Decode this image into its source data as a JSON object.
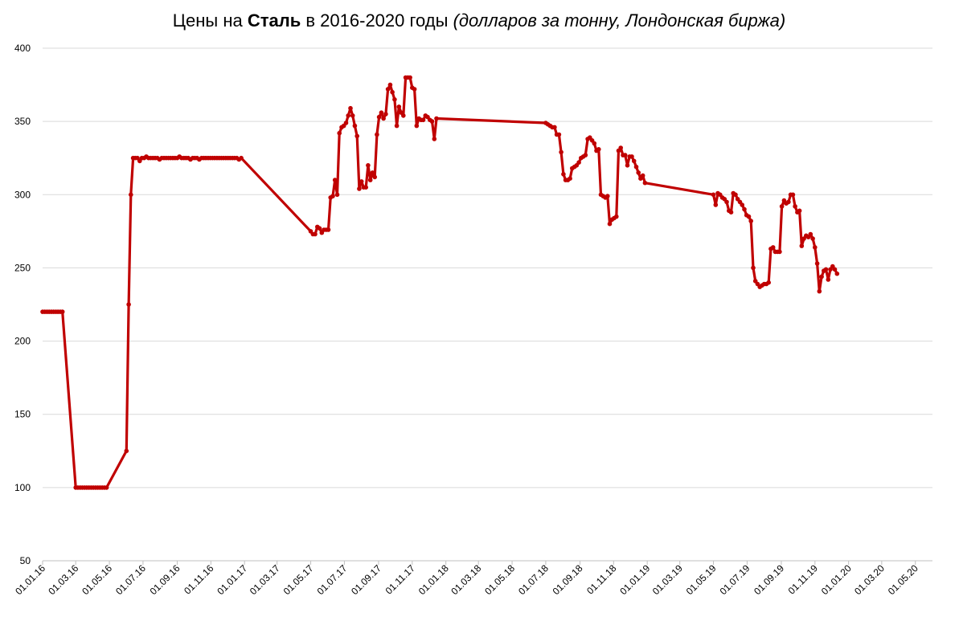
{
  "chart_data": {
    "type": "line",
    "title_parts": {
      "prefix": "Цены на ",
      "bold": "Сталь",
      "middle": " в 2016-2020 годы ",
      "italic": "(долларов за тонну, Лондонская биржа)"
    },
    "xlabel": "",
    "ylabel": "",
    "ylim": [
      50,
      400
    ],
    "yticks": [
      50,
      100,
      150,
      200,
      250,
      300,
      350,
      400
    ],
    "grid": true,
    "legend": "none",
    "colors": {
      "line": "#c00000",
      "grid": "#d9d9d9",
      "axis": "#bfbfbf"
    },
    "x_start": "2016-01-01",
    "x_end": "2020-06-01",
    "x_tick_labels": [
      {
        "date": "2016-01-01",
        "label": "01.01.16"
      },
      {
        "date": "2016-03-01",
        "label": "01.03.16"
      },
      {
        "date": "2016-05-01",
        "label": "01.05.16"
      },
      {
        "date": "2016-07-01",
        "label": "01.07.16"
      },
      {
        "date": "2016-09-01",
        "label": "01.09.16"
      },
      {
        "date": "2016-11-01",
        "label": "01.11.16"
      },
      {
        "date": "2017-01-01",
        "label": "01.01.17"
      },
      {
        "date": "2017-03-01",
        "label": "01.03.17"
      },
      {
        "date": "2017-05-01",
        "label": "01.05.17"
      },
      {
        "date": "2017-07-01",
        "label": "01.07.17"
      },
      {
        "date": "2017-09-01",
        "label": "01.09.17"
      },
      {
        "date": "2017-11-01",
        "label": "01.11.17"
      },
      {
        "date": "2018-01-01",
        "label": "01.01.18"
      },
      {
        "date": "2018-03-01",
        "label": "01.03.18"
      },
      {
        "date": "2018-05-01",
        "label": "01.05.18"
      },
      {
        "date": "2018-07-01",
        "label": "01.07.18"
      },
      {
        "date": "2018-09-01",
        "label": "01.09.18"
      },
      {
        "date": "2018-11-01",
        "label": "01.11.18"
      },
      {
        "date": "2019-01-01",
        "label": "01.01.19"
      },
      {
        "date": "2019-03-01",
        "label": "01.03.19"
      },
      {
        "date": "2019-05-01",
        "label": "01.05.19"
      },
      {
        "date": "2019-07-01",
        "label": "01.07.19"
      },
      {
        "date": "2019-09-01",
        "label": "01.09.19"
      },
      {
        "date": "2019-11-01",
        "label": "01.11.19"
      },
      {
        "date": "2020-01-01",
        "label": "01.01.20"
      },
      {
        "date": "2020-03-01",
        "label": "01.03.20"
      },
      {
        "date": "2020-05-01",
        "label": "01.05.20"
      }
    ],
    "series": [
      {
        "points": [
          [
            "2016-01-01",
            220
          ],
          [
            "2016-01-05",
            220
          ],
          [
            "2016-01-09",
            220
          ],
          [
            "2016-01-13",
            220
          ],
          [
            "2016-01-17",
            220
          ],
          [
            "2016-01-21",
            220
          ],
          [
            "2016-01-25",
            220
          ],
          [
            "2016-01-29",
            220
          ],
          [
            "2016-02-02",
            220
          ],
          [
            "2016-02-06",
            220
          ],
          [
            "2016-03-01",
            100
          ],
          [
            "2016-03-05",
            100
          ],
          [
            "2016-03-09",
            100
          ],
          [
            "2016-03-13",
            100
          ],
          [
            "2016-03-17",
            100
          ],
          [
            "2016-03-21",
            100
          ],
          [
            "2016-03-25",
            100
          ],
          [
            "2016-03-29",
            100
          ],
          [
            "2016-04-02",
            100
          ],
          [
            "2016-04-06",
            100
          ],
          [
            "2016-04-10",
            100
          ],
          [
            "2016-04-14",
            100
          ],
          [
            "2016-04-18",
            100
          ],
          [
            "2016-04-22",
            100
          ],
          [
            "2016-04-26",
            100
          ],
          [
            "2016-06-01",
            125
          ],
          [
            "2016-06-05",
            225
          ],
          [
            "2016-06-09",
            300
          ],
          [
            "2016-06-13",
            325
          ],
          [
            "2016-06-17",
            325
          ],
          [
            "2016-06-21",
            325
          ],
          [
            "2016-06-25",
            323
          ],
          [
            "2016-06-29",
            325
          ],
          [
            "2016-07-03",
            325
          ],
          [
            "2016-07-07",
            326
          ],
          [
            "2016-07-11",
            325
          ],
          [
            "2016-07-15",
            325
          ],
          [
            "2016-07-19",
            325
          ],
          [
            "2016-07-23",
            325
          ],
          [
            "2016-07-27",
            325
          ],
          [
            "2016-07-31",
            324
          ],
          [
            "2016-08-04",
            325
          ],
          [
            "2016-08-08",
            325
          ],
          [
            "2016-08-12",
            325
          ],
          [
            "2016-08-16",
            325
          ],
          [
            "2016-08-20",
            325
          ],
          [
            "2016-08-24",
            325
          ],
          [
            "2016-08-28",
            325
          ],
          [
            "2016-09-01",
            325
          ],
          [
            "2016-09-05",
            326
          ],
          [
            "2016-09-09",
            325
          ],
          [
            "2016-09-13",
            325
          ],
          [
            "2016-09-17",
            325
          ],
          [
            "2016-09-21",
            325
          ],
          [
            "2016-09-25",
            324
          ],
          [
            "2016-09-29",
            325
          ],
          [
            "2016-10-03",
            325
          ],
          [
            "2016-10-07",
            325
          ],
          [
            "2016-10-11",
            324
          ],
          [
            "2016-10-15",
            325
          ],
          [
            "2016-10-19",
            325
          ],
          [
            "2016-10-23",
            325
          ],
          [
            "2016-10-27",
            325
          ],
          [
            "2016-10-31",
            325
          ],
          [
            "2016-11-04",
            325
          ],
          [
            "2016-11-08",
            325
          ],
          [
            "2016-11-12",
            325
          ],
          [
            "2016-11-16",
            325
          ],
          [
            "2016-11-20",
            325
          ],
          [
            "2016-11-24",
            325
          ],
          [
            "2016-11-28",
            325
          ],
          [
            "2016-12-02",
            325
          ],
          [
            "2016-12-06",
            325
          ],
          [
            "2016-12-10",
            325
          ],
          [
            "2016-12-14",
            325
          ],
          [
            "2016-12-18",
            325
          ],
          [
            "2016-12-22",
            324
          ],
          [
            "2016-12-26",
            325
          ],
          [
            "2017-05-01",
            275
          ],
          [
            "2017-05-05",
            273
          ],
          [
            "2017-05-09",
            273
          ],
          [
            "2017-05-13",
            278
          ],
          [
            "2017-05-17",
            277
          ],
          [
            "2017-05-21",
            274
          ],
          [
            "2017-05-25",
            276
          ],
          [
            "2017-05-29",
            276
          ],
          [
            "2017-06-02",
            276
          ],
          [
            "2017-06-06",
            298
          ],
          [
            "2017-06-10",
            299
          ],
          [
            "2017-06-14",
            310
          ],
          [
            "2017-06-18",
            300
          ],
          [
            "2017-06-22",
            342
          ],
          [
            "2017-06-26",
            346
          ],
          [
            "2017-06-30",
            347
          ],
          [
            "2017-07-04",
            349
          ],
          [
            "2017-07-08",
            354
          ],
          [
            "2017-07-12",
            359
          ],
          [
            "2017-07-16",
            354
          ],
          [
            "2017-07-20",
            347
          ],
          [
            "2017-07-24",
            340
          ],
          [
            "2017-07-28",
            304
          ],
          [
            "2017-08-01",
            309
          ],
          [
            "2017-08-05",
            305
          ],
          [
            "2017-08-09",
            305
          ],
          [
            "2017-08-13",
            320
          ],
          [
            "2017-08-17",
            310
          ],
          [
            "2017-08-21",
            315
          ],
          [
            "2017-08-25",
            312
          ],
          [
            "2017-08-29",
            341
          ],
          [
            "2017-09-02",
            353
          ],
          [
            "2017-09-06",
            356
          ],
          [
            "2017-09-10",
            352
          ],
          [
            "2017-09-14",
            355
          ],
          [
            "2017-09-18",
            372
          ],
          [
            "2017-09-22",
            375
          ],
          [
            "2017-09-26",
            370
          ],
          [
            "2017-09-30",
            365
          ],
          [
            "2017-10-04",
            347
          ],
          [
            "2017-10-08",
            360
          ],
          [
            "2017-10-12",
            356
          ],
          [
            "2017-10-16",
            354
          ],
          [
            "2017-10-20",
            380
          ],
          [
            "2017-10-24",
            380
          ],
          [
            "2017-10-28",
            380
          ],
          [
            "2017-11-01",
            373
          ],
          [
            "2017-11-05",
            372
          ],
          [
            "2017-11-09",
            347
          ],
          [
            "2017-11-13",
            352
          ],
          [
            "2017-11-17",
            351
          ],
          [
            "2017-11-21",
            351
          ],
          [
            "2017-11-25",
            354
          ],
          [
            "2017-11-29",
            353
          ],
          [
            "2017-12-03",
            351
          ],
          [
            "2017-12-07",
            350
          ],
          [
            "2017-12-11",
            338
          ],
          [
            "2017-12-15",
            352
          ],
          [
            "2018-07-01",
            349
          ],
          [
            "2018-07-05",
            348
          ],
          [
            "2018-07-09",
            347
          ],
          [
            "2018-07-13",
            346
          ],
          [
            "2018-07-17",
            346
          ],
          [
            "2018-07-21",
            341
          ],
          [
            "2018-07-25",
            341
          ],
          [
            "2018-07-29",
            329
          ],
          [
            "2018-08-02",
            314
          ],
          [
            "2018-08-06",
            310
          ],
          [
            "2018-08-10",
            310
          ],
          [
            "2018-08-14",
            311
          ],
          [
            "2018-08-18",
            318
          ],
          [
            "2018-08-22",
            319
          ],
          [
            "2018-08-26",
            320
          ],
          [
            "2018-08-30",
            322
          ],
          [
            "2018-09-03",
            325
          ],
          [
            "2018-09-07",
            326
          ],
          [
            "2018-09-11",
            327
          ],
          [
            "2018-09-15",
            338
          ],
          [
            "2018-09-19",
            339
          ],
          [
            "2018-09-23",
            337
          ],
          [
            "2018-09-27",
            335
          ],
          [
            "2018-10-01",
            330
          ],
          [
            "2018-10-05",
            331
          ],
          [
            "2018-10-09",
            300
          ],
          [
            "2018-10-13",
            299
          ],
          [
            "2018-10-17",
            298
          ],
          [
            "2018-10-21",
            299
          ],
          [
            "2018-10-25",
            280
          ],
          [
            "2018-10-29",
            283
          ],
          [
            "2018-11-02",
            284
          ],
          [
            "2018-11-06",
            285
          ],
          [
            "2018-11-10",
            330
          ],
          [
            "2018-11-14",
            332
          ],
          [
            "2018-11-18",
            327
          ],
          [
            "2018-11-22",
            327
          ],
          [
            "2018-11-26",
            320
          ],
          [
            "2018-11-30",
            326
          ],
          [
            "2018-12-04",
            326
          ],
          [
            "2018-12-08",
            323
          ],
          [
            "2018-12-12",
            319
          ],
          [
            "2018-12-16",
            315
          ],
          [
            "2018-12-20",
            311
          ],
          [
            "2018-12-24",
            313
          ],
          [
            "2018-12-28",
            308
          ],
          [
            "2019-05-01",
            300
          ],
          [
            "2019-05-05",
            293
          ],
          [
            "2019-05-09",
            301
          ],
          [
            "2019-05-13",
            300
          ],
          [
            "2019-05-17",
            298
          ],
          [
            "2019-05-21",
            297
          ],
          [
            "2019-05-25",
            295
          ],
          [
            "2019-05-29",
            289
          ],
          [
            "2019-06-02",
            288
          ],
          [
            "2019-06-06",
            301
          ],
          [
            "2019-06-10",
            300
          ],
          [
            "2019-06-14",
            297
          ],
          [
            "2019-06-18",
            295
          ],
          [
            "2019-06-22",
            293
          ],
          [
            "2019-06-26",
            290
          ],
          [
            "2019-06-30",
            286
          ],
          [
            "2019-07-04",
            285
          ],
          [
            "2019-07-08",
            282
          ],
          [
            "2019-07-12",
            250
          ],
          [
            "2019-07-16",
            241
          ],
          [
            "2019-07-20",
            239
          ],
          [
            "2019-07-24",
            237
          ],
          [
            "2019-07-28",
            238
          ],
          [
            "2019-08-01",
            239
          ],
          [
            "2019-08-05",
            239
          ],
          [
            "2019-08-09",
            240
          ],
          [
            "2019-08-13",
            263
          ],
          [
            "2019-08-17",
            264
          ],
          [
            "2019-08-21",
            261
          ],
          [
            "2019-08-25",
            261
          ],
          [
            "2019-08-29",
            261
          ],
          [
            "2019-09-02",
            292
          ],
          [
            "2019-09-06",
            296
          ],
          [
            "2019-09-10",
            294
          ],
          [
            "2019-09-14",
            295
          ],
          [
            "2019-09-18",
            300
          ],
          [
            "2019-09-22",
            300
          ],
          [
            "2019-09-26",
            292
          ],
          [
            "2019-09-30",
            288
          ],
          [
            "2019-10-04",
            289
          ],
          [
            "2019-10-08",
            265
          ],
          [
            "2019-10-12",
            270
          ],
          [
            "2019-10-16",
            272
          ],
          [
            "2019-10-20",
            271
          ],
          [
            "2019-10-24",
            273
          ],
          [
            "2019-10-28",
            270
          ],
          [
            "2019-11-01",
            264
          ],
          [
            "2019-11-05",
            253
          ],
          [
            "2019-11-09",
            234
          ],
          [
            "2019-11-13",
            244
          ],
          [
            "2019-11-17",
            248
          ],
          [
            "2019-11-21",
            249
          ],
          [
            "2019-11-25",
            242
          ],
          [
            "2019-11-29",
            249
          ],
          [
            "2019-12-03",
            251
          ],
          [
            "2019-12-07",
            249
          ],
          [
            "2019-12-11",
            246
          ]
        ]
      }
    ]
  }
}
